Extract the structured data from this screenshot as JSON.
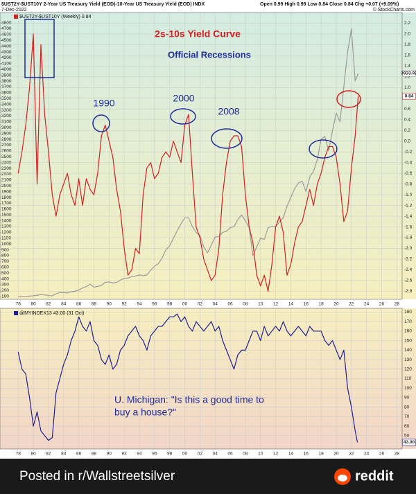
{
  "header": {
    "title": "$UST2Y-$UST10Y 2-Year US Treasury Yield (EOD)-10-Year US Treasury Yield (EOD) INDX",
    "date": "7-Dec-2022",
    "quote": "Open 0.99 High 0.99 Low 0.84 Close 0.84 Chg +0.07 (+9.09%)",
    "source": "© StockCharts.com"
  },
  "footer": {
    "text": "Posted in r/Wallstreetsilver",
    "brand": "reddit"
  },
  "chart_data": [
    {
      "type": "line",
      "legend": "upper left",
      "grid": true,
      "annotations": [
        "2s-10s Yield Curve",
        "Official Recessions",
        "1990",
        "2000",
        "2008"
      ],
      "xlim": [
        1975.6,
        2028.7
      ],
      "xticks": [
        {
          "value": 1978,
          "label": "78"
        },
        {
          "value": 1980,
          "label": "80"
        },
        {
          "value": 1982,
          "label": "82"
        },
        {
          "value": 1984,
          "label": "84"
        },
        {
          "value": 1986,
          "label": "86"
        },
        {
          "value": 1988,
          "label": "88"
        },
        {
          "value": 1990,
          "label": "90"
        },
        {
          "value": 1992,
          "label": "92"
        },
        {
          "value": 1994,
          "label": "94"
        },
        {
          "value": 1996,
          "label": "96"
        },
        {
          "value": 1998,
          "label": "98"
        },
        {
          "value": 2000,
          "label": "00"
        },
        {
          "value": 2002,
          "label": "02"
        },
        {
          "value": 2004,
          "label": "04"
        },
        {
          "value": 2006,
          "label": "06"
        },
        {
          "value": 2008,
          "label": "08"
        },
        {
          "value": 2010,
          "label": "10"
        },
        {
          "value": 2012,
          "label": "12"
        },
        {
          "value": 2014,
          "label": "14"
        },
        {
          "value": 2016,
          "label": "16"
        },
        {
          "value": 2018,
          "label": "18"
        },
        {
          "value": 2020,
          "label": "20"
        },
        {
          "value": 2022,
          "label": "22"
        },
        {
          "value": 2024,
          "label": "24"
        },
        {
          "value": 2026,
          "label": "26"
        },
        {
          "value": 2028,
          "label": "28"
        }
      ],
      "ylim": [
        50,
        4980
      ],
      "yticks": [
        100,
        200,
        300,
        400,
        500,
        600,
        700,
        800,
        900,
        1000,
        1100,
        1200,
        1300,
        1400,
        1500,
        1600,
        1700,
        1800,
        1900,
        2000,
        2100,
        2200,
        2300,
        2400,
        2500,
        2600,
        2700,
        2800,
        2900,
        3000,
        3100,
        3200,
        3300,
        3400,
        3500,
        3600,
        3700,
        3800,
        3900,
        4000,
        4100,
        4200,
        4300,
        4400,
        4500,
        4600,
        4700,
        4800
      ],
      "y2lim": [
        -2.95,
        2.4
      ],
      "y2ticks": [
        -2.8,
        -2.6,
        -2.4,
        -2.2,
        {
          "value": -2,
          "label": "-2.0"
        },
        -1.8,
        -1.6,
        -1.4,
        -1.2,
        {
          "value": -1,
          "label": "-1.0"
        },
        -0.8,
        -0.6,
        -0.4,
        -0.2,
        {
          "value": 0,
          "label": "0.0"
        },
        0.2,
        0.4,
        0.6,
        0.8,
        {
          "value": 1,
          "label": "1.0"
        },
        1.2,
        1.4,
        1.6,
        1.8,
        {
          "value": 2,
          "label": "2.0"
        },
        2.2
      ],
      "x": [
        1978,
        1978.5,
        1979,
        1979.5,
        1980,
        1980.5,
        1981,
        1981.5,
        1982,
        1982.5,
        1983,
        1983.5,
        1984,
        1984.5,
        1985,
        1985.5,
        1986,
        1986.5,
        1987,
        1987.5,
        1988,
        1988.5,
        1989,
        1989.5,
        1990,
        1990.5,
        1991,
        1991.5,
        1992,
        1992.5,
        1993,
        1993.5,
        1994,
        1994.5,
        1995,
        1995.5,
        1996,
        1996.5,
        1997,
        1997.5,
        1998,
        1998.5,
        1999,
        1999.5,
        2000,
        2000.5,
        2001,
        2001.5,
        2002,
        2002.5,
        2003,
        2003.5,
        2004,
        2004.5,
        2005,
        2005.5,
        2006,
        2006.5,
        2007,
        2007.5,
        2008,
        2008.5,
        2009,
        2009.5,
        2010,
        2010.5,
        2011,
        2011.5,
        2012,
        2012.5,
        2013,
        2013.5,
        2014,
        2014.5,
        2015,
        2015.5,
        2016,
        2016.5,
        2017,
        2017.5,
        2018,
        2018.5,
        2019,
        2019.5,
        2020,
        2020.5,
        2021,
        2021.5,
        2022,
        2022.5,
        2022.9
      ],
      "series": [
        {
          "color": "#9a9a9a",
          "axis": "y",
          "values": [
            95,
            100,
            100,
            105,
            110,
            120,
            130,
            125,
            115,
            110,
            145,
            165,
            165,
            160,
            180,
            190,
            210,
            245,
            270,
            310,
            260,
            270,
            290,
            340,
            350,
            330,
            340,
            380,
            410,
            415,
            440,
            450,
            470,
            455,
            470,
            550,
            620,
            660,
            760,
            900,
            970,
            1100,
            1230,
            1350,
            1450,
            1450,
            1300,
            1200,
            1150,
            950,
            850,
            980,
            1120,
            1130,
            1200,
            1220,
            1280,
            1300,
            1420,
            1500,
            1400,
            1280,
            800,
            950,
            1100,
            1080,
            1280,
            1300,
            1300,
            1380,
            1450,
            1650,
            1800,
            1950,
            2050,
            2080,
            1900,
            2150,
            2250,
            2450,
            2800,
            2850,
            2600,
            2950,
            3250,
            3100,
            3700,
            4300,
            4700,
            3800,
            3933.92
          ]
        },
        {
          "name": "$UST2Y-$UST10Y (Weekly) 0.84",
          "color": "#d21f1f",
          "axis": "y2",
          "values": [
            -0.6,
            -0.2,
            0.3,
            1.0,
            2.0,
            -0.8,
            1.8,
            0.5,
            -0.2,
            -1.0,
            -1.4,
            -1.0,
            -0.8,
            -0.6,
            -1.0,
            -1.2,
            -0.7,
            -1.2,
            -0.7,
            -0.9,
            -1.0,
            -0.6,
            0.1,
            0.3,
            0.0,
            -0.3,
            -0.9,
            -1.3,
            -2.0,
            -2.5,
            -2.4,
            -2.0,
            -2.1,
            -1.0,
            -0.5,
            -0.4,
            -0.7,
            -0.6,
            -0.3,
            -0.2,
            -0.3,
            0.0,
            -0.2,
            -0.4,
            0.3,
            0.5,
            -0.6,
            -1.6,
            -1.8,
            -2.2,
            -2.4,
            -2.6,
            -2.5,
            -2.0,
            -1.0,
            -0.4,
            0.0,
            0.1,
            0.1,
            -0.1,
            -1.0,
            -1.6,
            -1.9,
            -2.5,
            -2.7,
            -2.5,
            -2.8,
            -2.3,
            -1.6,
            -1.4,
            -1.7,
            -2.5,
            -2.3,
            -1.9,
            -1.6,
            -1.5,
            -1.2,
            -0.9,
            -1.2,
            -0.8,
            -0.6,
            -0.3,
            -0.1,
            -0.1,
            -0.3,
            -0.8,
            -1.5,
            -1.3,
            -0.5,
            0.1,
            0.84
          ]
        }
      ]
    },
    {
      "type": "line",
      "legend": "upper left",
      "grid": true,
      "annotations": [
        "U. Michigan: \"Is this a good time to",
        "buy a house?\""
      ],
      "xlim": [
        1975.6,
        2028.7
      ],
      "xticks": [
        {
          "value": 1978,
          "label": "78"
        },
        {
          "value": 1980,
          "label": "80"
        },
        {
          "value": 1982,
          "label": "82"
        },
        {
          "value": 1984,
          "label": "84"
        },
        {
          "value": 1986,
          "label": "86"
        },
        {
          "value": 1988,
          "label": "88"
        },
        {
          "value": 1990,
          "label": "90"
        },
        {
          "value": 1992,
          "label": "92"
        },
        {
          "value": 1994,
          "label": "94"
        },
        {
          "value": 1996,
          "label": "96"
        },
        {
          "value": 1998,
          "label": "98"
        },
        {
          "value": 2000,
          "label": "00"
        },
        {
          "value": 2002,
          "label": "02"
        },
        {
          "value": 2004,
          "label": "04"
        },
        {
          "value": 2006,
          "label": "06"
        },
        {
          "value": 2008,
          "label": "08"
        },
        {
          "value": 2010,
          "label": "10"
        },
        {
          "value": 2012,
          "label": "12"
        },
        {
          "value": 2014,
          "label": "14"
        },
        {
          "value": 2016,
          "label": "16"
        },
        {
          "value": 2018,
          "label": "18"
        },
        {
          "value": 2020,
          "label": "20"
        },
        {
          "value": 2022,
          "label": "22"
        },
        {
          "value": 2024,
          "label": "24"
        },
        {
          "value": 2026,
          "label": "26"
        },
        {
          "value": 2028,
          "label": "28"
        }
      ],
      "ylim": [
        36,
        184
      ],
      "yticks": [
        50,
        60,
        70,
        80,
        90,
        100,
        110,
        120,
        130,
        140,
        150,
        160,
        170,
        180
      ],
      "x": [
        1978,
        1978.5,
        1979,
        1979.5,
        1980,
        1980.5,
        1981,
        1981.5,
        1982,
        1982.5,
        1983,
        1983.5,
        1984,
        1984.5,
        1985,
        1985.5,
        1986,
        1986.5,
        1987,
        1987.5,
        1988,
        1988.5,
        1989,
        1989.5,
        1990,
        1990.5,
        1991,
        1991.5,
        1992,
        1992.5,
        1993,
        1993.5,
        1994,
        1994.5,
        1995,
        1995.5,
        1996,
        1996.5,
        1997,
        1997.5,
        1998,
        1998.5,
        1999,
        1999.5,
        2000,
        2000.5,
        2001,
        2001.5,
        2002,
        2002.5,
        2003,
        2003.5,
        2004,
        2004.5,
        2005,
        2005.5,
        2006,
        2006.5,
        2007,
        2007.5,
        2008,
        2008.5,
        2009,
        2009.5,
        2010,
        2010.5,
        2011,
        2011.5,
        2012,
        2012.5,
        2013,
        2013.5,
        2014,
        2014.5,
        2015,
        2015.5,
        2016,
        2016.5,
        2017,
        2017.5,
        2018,
        2018.5,
        2019,
        2019.5,
        2020,
        2020.5,
        2021,
        2021.5,
        2022,
        2022.5,
        2022.8
      ],
      "series": [
        {
          "name": "@MYINDEX13 43.00 (31 Oct)",
          "color": "#1f1f8f",
          "axis": "y",
          "values": [
            138,
            120,
            115,
            90,
            60,
            75,
            55,
            50,
            45,
            48,
            95,
            110,
            125,
            135,
            150,
            160,
            175,
            165,
            160,
            170,
            150,
            145,
            130,
            125,
            135,
            120,
            125,
            140,
            145,
            155,
            160,
            165,
            155,
            150,
            140,
            155,
            160,
            165,
            165,
            170,
            175,
            175,
            178,
            170,
            175,
            165,
            160,
            170,
            165,
            160,
            165,
            170,
            160,
            165,
            150,
            140,
            130,
            120,
            135,
            140,
            140,
            150,
            160,
            160,
            150,
            165,
            155,
            160,
            165,
            160,
            170,
            160,
            155,
            160,
            165,
            160,
            155,
            165,
            160,
            160,
            160,
            150,
            145,
            150,
            140,
            130,
            140,
            100,
            80,
            55,
            43
          ],
          "value_labels": [
            null,
            null,
            null,
            null,
            null,
            null,
            null,
            null,
            null,
            null,
            null,
            null,
            null,
            null,
            null,
            null,
            null,
            null,
            null,
            null,
            null,
            null,
            null,
            null,
            null,
            null,
            null,
            null,
            null,
            null,
            null,
            null,
            null,
            null,
            null,
            null,
            null,
            null,
            null,
            null,
            null,
            null,
            null,
            null,
            null,
            null,
            null,
            null,
            null,
            null,
            null,
            null,
            null,
            null,
            null,
            null,
            null,
            null,
            null,
            null,
            null,
            null,
            null,
            null,
            null,
            null,
            null,
            null,
            null,
            null,
            null,
            null,
            null,
            null,
            null,
            null,
            null,
            null,
            null,
            null,
            null,
            null,
            null,
            null,
            null,
            null,
            null,
            null,
            null,
            null,
            "43.00"
          ]
        }
      ]
    }
  ]
}
